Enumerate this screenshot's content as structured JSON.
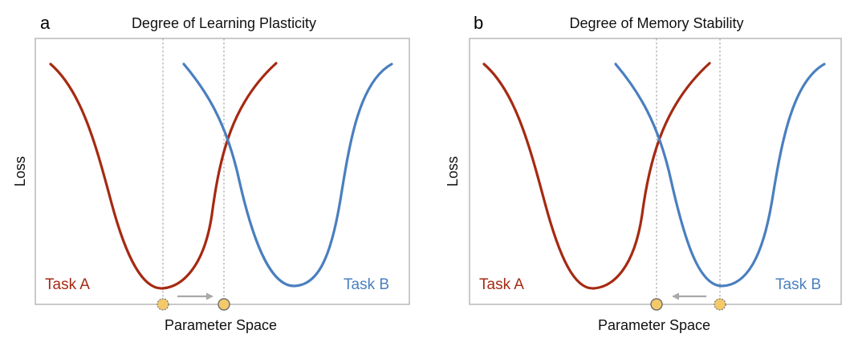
{
  "panels": [
    {
      "letter": "a",
      "title": "Degree of Learning Plasticity",
      "ylabel": "Loss",
      "xlabel": "Parameter Space",
      "task_a_label": "Task A",
      "task_b_label": "Task B",
      "arrow_direction": "right"
    },
    {
      "letter": "b",
      "title": "Degree of Memory Stability",
      "ylabel": "Loss",
      "xlabel": "Parameter Space",
      "task_a_label": "Task A",
      "task_b_label": "Task B",
      "arrow_direction": "left"
    }
  ],
  "colors": {
    "task_a": "#a52a12",
    "task_b": "#4a7fbf",
    "frame": "#b8b8b8",
    "guide": "#9a9a9a",
    "arrow": "#a8a8a8",
    "marker_fill": "#f4c96a",
    "marker_stroke": "#6e6e6e"
  }
}
